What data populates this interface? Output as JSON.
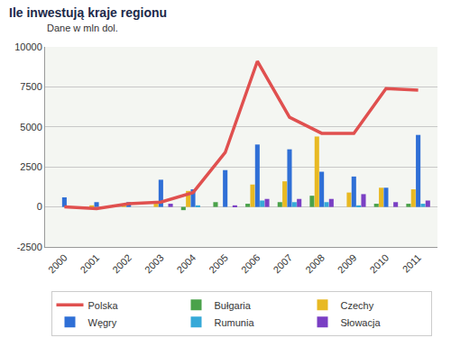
{
  "chart_data": {
    "type": "bar",
    "title": "Ile inwestują kraje regionu",
    "subtitle": "Dane w mln dol.",
    "categories": [
      "2000",
      "2001",
      "2002",
      "2003",
      "2004",
      "2005",
      "2006",
      "2007",
      "2008",
      "2009",
      "2010",
      "2011"
    ],
    "series": [
      {
        "name": "Polska",
        "type": "line",
        "color": "#e0504f",
        "values": [
          0,
          -100,
          200,
          300,
          900,
          3400,
          9100,
          5600,
          4600,
          4600,
          7400,
          7300
        ]
      },
      {
        "name": "Bułgaria",
        "type": "bar",
        "color": "#4aa24a",
        "values": [
          0,
          0,
          0,
          0,
          -200,
          300,
          200,
          300,
          700,
          0,
          200,
          200
        ]
      },
      {
        "name": "Czechy",
        "type": "bar",
        "color": "#e8b923",
        "values": [
          0,
          100,
          200,
          200,
          1000,
          0,
          1400,
          1600,
          4400,
          900,
          1200,
          1100
        ]
      },
      {
        "name": "Węgry",
        "type": "bar",
        "color": "#2f6fd6",
        "values": [
          600,
          300,
          300,
          1700,
          1100,
          2300,
          3900,
          3600,
          2200,
          1900,
          1200,
          4500
        ]
      },
      {
        "name": "Rumunia",
        "type": "bar",
        "color": "#36a9d8",
        "values": [
          0,
          0,
          0,
          0,
          100,
          0,
          400,
          300,
          300,
          100,
          0,
          200
        ]
      },
      {
        "name": "Słowacja",
        "type": "bar",
        "color": "#7a3fc4",
        "values": [
          0,
          0,
          0,
          200,
          0,
          100,
          500,
          500,
          500,
          800,
          300,
          400
        ]
      }
    ],
    "ylim": [
      -2500,
      10000
    ],
    "yticks": [
      -2500,
      0,
      2500,
      5000,
      7500,
      10000
    ],
    "grid": true,
    "legend": "bottom"
  }
}
